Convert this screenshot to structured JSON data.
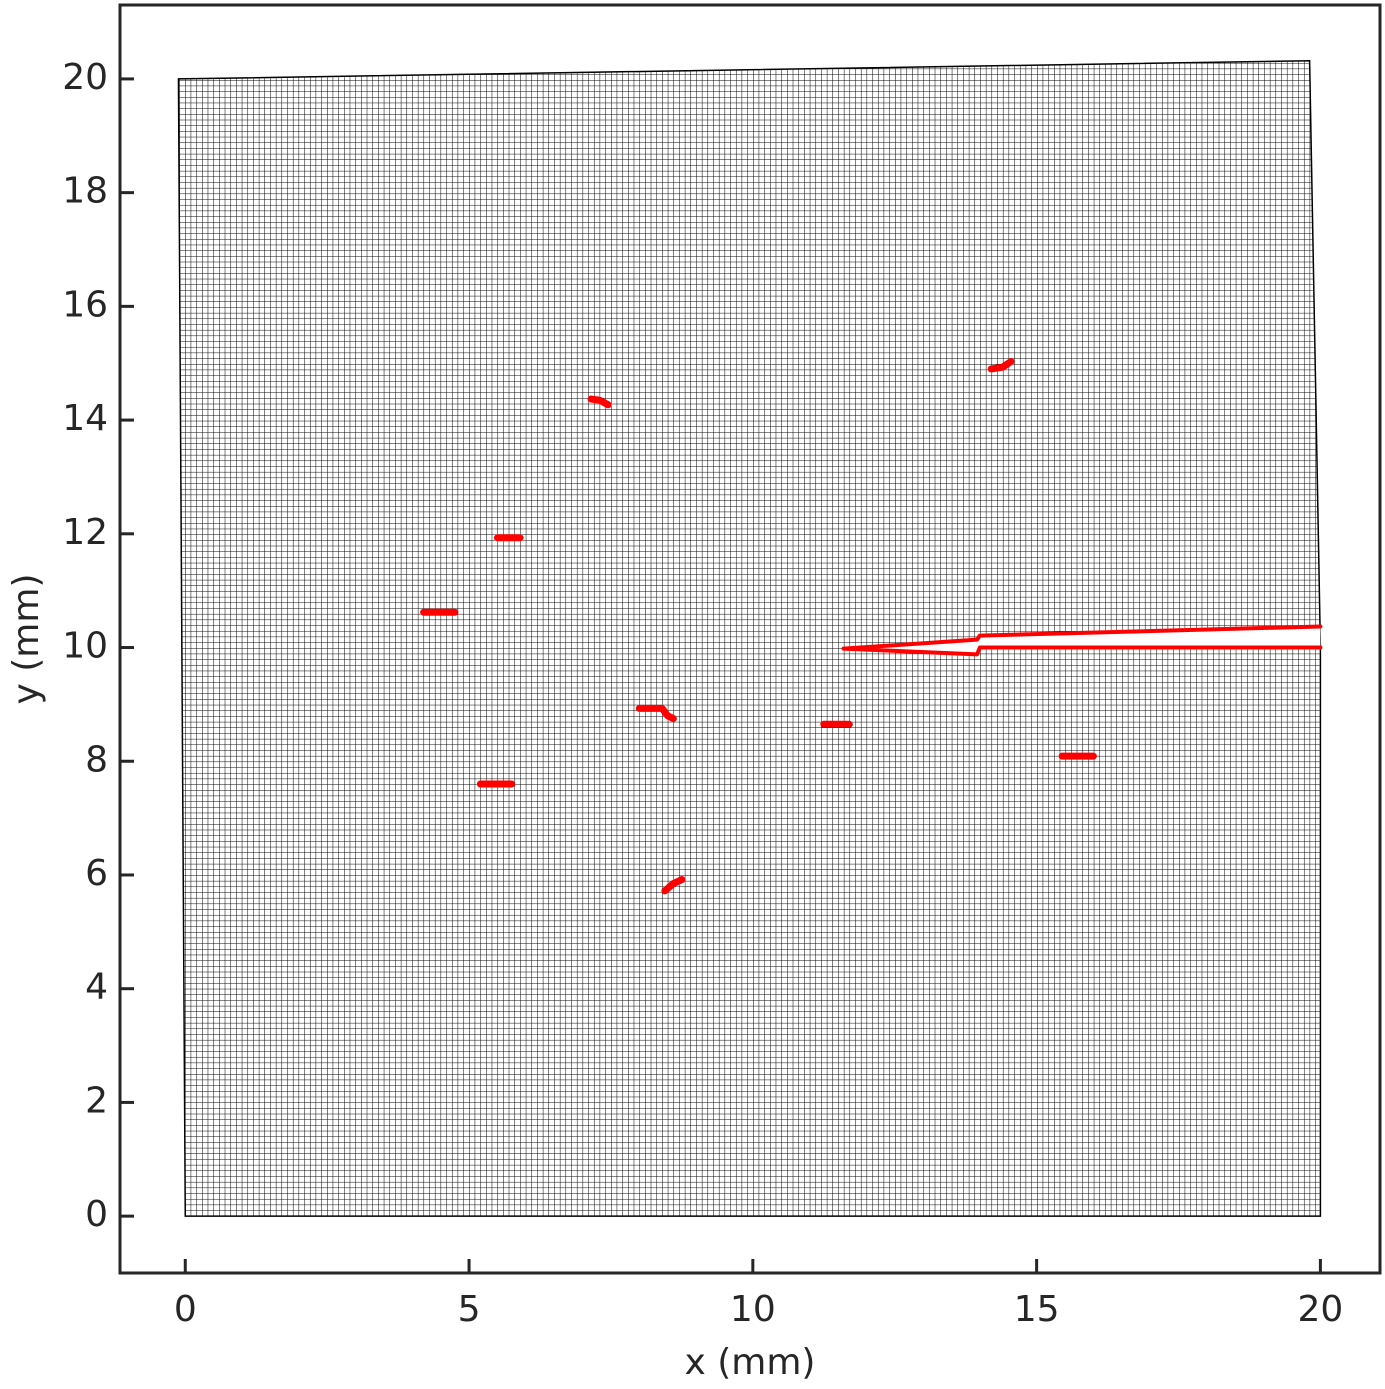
{
  "chart_data": {
    "type": "mesh",
    "xlabel": "x (mm)",
    "ylabel": "y (mm)",
    "xlim": [
      -1.15,
      21.05
    ],
    "ylim": [
      -1.0,
      21.3
    ],
    "xticks": [
      0,
      5,
      10,
      15,
      20
    ],
    "yticks": [
      0,
      2,
      4,
      6,
      8,
      10,
      12,
      14,
      16,
      18,
      20
    ],
    "mesh": {
      "x": [
        0,
        20,
        20,
        19.81,
        -0.12
      ],
      "y": [
        0,
        0,
        10.0,
        20.32,
        20.0
      ],
      "color": "#000000"
    },
    "series": [
      {
        "color": "#ff0000",
        "x": [
          4.2,
          4.75
        ],
        "y": [
          10.62,
          10.62
        ]
      },
      {
        "color": "#ff0000",
        "x": [
          5.5,
          5.9
        ],
        "y": [
          11.93,
          11.93
        ]
      },
      {
        "color": "#ff0000",
        "x": [
          5.2,
          5.75
        ],
        "y": [
          7.6,
          7.6
        ]
      },
      {
        "color": "#ff0000",
        "x": [
          7.15,
          7.3,
          7.45
        ],
        "y": [
          14.37,
          14.35,
          14.27
        ]
      },
      {
        "color": "#ff0000",
        "x": [
          8.0,
          8.4,
          8.5,
          8.6
        ],
        "y": [
          8.93,
          8.93,
          8.8,
          8.75
        ]
      },
      {
        "color": "#ff0000",
        "x": [
          8.45,
          8.6,
          8.75
        ],
        "y": [
          5.72,
          5.85,
          5.92
        ]
      },
      {
        "color": "#ff0000",
        "x": [
          11.25,
          11.7
        ],
        "y": [
          8.65,
          8.65
        ]
      },
      {
        "color": "#ff0000",
        "x": [
          15.45,
          16.0
        ],
        "y": [
          8.09,
          8.09
        ]
      },
      {
        "color": "#ff0000",
        "x": [
          14.2,
          14.4,
          14.55
        ],
        "y": [
          14.9,
          14.93,
          15.03
        ]
      },
      {
        "color": "#ff0000",
        "x": [
          11.6,
          13.95,
          14.0,
          20.0
        ],
        "y": [
          9.98,
          10.14,
          10.21,
          10.37
        ]
      },
      {
        "color": "#ff0000",
        "x": [
          11.6,
          13.95,
          14.0,
          20.0
        ],
        "y": [
          9.98,
          9.88,
          10.0,
          10.0
        ]
      }
    ]
  }
}
